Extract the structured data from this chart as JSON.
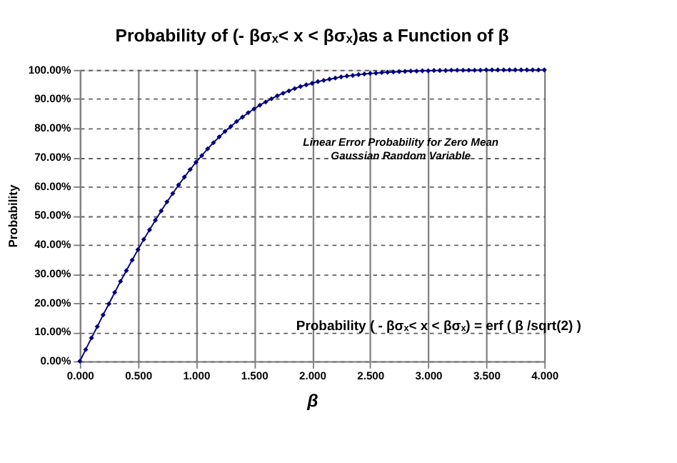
{
  "chart_data": {
    "type": "line",
    "title": "Probability of (- βσₓ< x < βσₓ)as a Function of  β",
    "xlabel": "β",
    "ylabel": "Probability",
    "x": [
      0,
      0.05,
      0.1,
      0.15,
      0.2,
      0.25,
      0.3,
      0.35,
      0.4,
      0.45,
      0.5,
      0.55,
      0.6,
      0.65,
      0.7,
      0.75,
      0.8,
      0.85,
      0.9,
      0.95,
      1.0,
      1.05,
      1.1,
      1.15,
      1.2,
      1.25,
      1.3,
      1.35,
      1.4,
      1.45,
      1.5,
      1.55,
      1.6,
      1.65,
      1.7,
      1.75,
      1.8,
      1.85,
      1.9,
      1.95,
      2.0,
      2.05,
      2.1,
      2.15,
      2.2,
      2.25,
      2.3,
      2.35,
      2.4,
      2.45,
      2.5,
      2.55,
      2.6,
      2.65,
      2.7,
      2.75,
      2.8,
      2.85,
      2.9,
      2.95,
      3.0,
      3.05,
      3.1,
      3.15,
      3.2,
      3.25,
      3.3,
      3.35,
      3.4,
      3.45,
      3.5,
      3.55,
      3.6,
      3.65,
      3.7,
      3.75,
      3.8,
      3.85,
      3.9,
      3.95,
      4.0
    ],
    "series": [
      {
        "color": "#000080",
        "values": [
          0,
          4.0,
          8.0,
          11.9,
          15.9,
          19.7,
          23.6,
          27.4,
          31.1,
          34.7,
          38.3,
          41.8,
          45.1,
          48.4,
          51.6,
          54.7,
          57.6,
          60.5,
          63.2,
          65.8,
          68.3,
          70.6,
          72.9,
          75.0,
          77.0,
          78.9,
          80.6,
          82.3,
          83.8,
          85.3,
          86.6,
          87.9,
          89.0,
          90.1,
          91.1,
          92.0,
          92.8,
          93.6,
          94.3,
          94.9,
          95.4,
          96.0,
          96.4,
          96.8,
          97.2,
          97.6,
          97.9,
          98.1,
          98.4,
          98.6,
          98.8,
          98.9,
          99.1,
          99.2,
          99.3,
          99.4,
          99.5,
          99.6,
          99.6,
          99.7,
          99.7,
          99.8,
          99.8,
          99.8,
          99.9,
          99.9,
          99.9,
          99.9,
          99.9,
          99.9,
          100.0,
          100.0,
          100.0,
          100.0,
          100.0,
          100.0,
          100.0,
          100.0,
          100.0,
          100.0,
          100.0
        ]
      }
    ],
    "xlim": [
      0,
      4
    ],
    "xticks": [
      {
        "value": 0,
        "label": "0.000"
      },
      {
        "value": 0.5,
        "label": "0.500"
      },
      {
        "value": 1,
        "label": "1.000"
      },
      {
        "value": 1.5,
        "label": "1.500"
      },
      {
        "value": 2,
        "label": "2.000"
      },
      {
        "value": 2.5,
        "label": "2.500"
      },
      {
        "value": 3,
        "label": "3.000"
      },
      {
        "value": 3.5,
        "label": "3.500"
      },
      {
        "value": 4,
        "label": "4.000"
      }
    ],
    "ylim": [
      0,
      100
    ],
    "yticks": [
      {
        "value": 0,
        "label": "0.00%"
      },
      {
        "value": 10,
        "label": "10.00%"
      },
      {
        "value": 20,
        "label": "20.00%"
      },
      {
        "value": 30,
        "label": "30.00%"
      },
      {
        "value": 40,
        "label": "40.00%"
      },
      {
        "value": 50,
        "label": "50.00%"
      },
      {
        "value": 60,
        "label": "60.00%"
      },
      {
        "value": 70,
        "label": "70.00%"
      },
      {
        "value": 80,
        "label": "80.00%"
      },
      {
        "value": 90,
        "label": "90.00%"
      },
      {
        "value": 100,
        "label": "100.00%"
      }
    ],
    "grid": true,
    "marker": "diamond",
    "line_style": "solid",
    "legend": false,
    "annotations": [
      "Linear Error Probability for Zero Mean\nGaussian Random Variable",
      "Probability ( - βσₓ< x < βσₓ) = erf ( β /sqrt(2) )"
    ]
  }
}
